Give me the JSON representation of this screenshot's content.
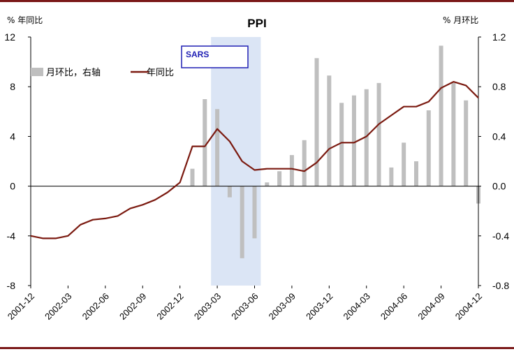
{
  "chart_data": {
    "type": "bar+line",
    "title": "PPI",
    "left_axis_unit": "% 年同比",
    "right_axis_unit": "% 月环比",
    "left_ylim": [
      -8,
      12
    ],
    "left_ticks": [
      -8,
      -4,
      0,
      4,
      8,
      12
    ],
    "left_tick_labels": [
      "-8",
      "-4",
      "0",
      "4",
      "8",
      "12"
    ],
    "right_ylim": [
      -0.8,
      1.2
    ],
    "right_ticks": [
      -0.8,
      -0.4,
      0.0,
      0.4,
      0.8,
      1.2
    ],
    "right_tick_labels": [
      "-0.8",
      "-0.4",
      "0.0",
      "0.4",
      "0.8",
      "1.2"
    ],
    "x_tick_labels": [
      "2001-12",
      "2002-03",
      "2002-06",
      "2002-09",
      "2002-12",
      "2003-03",
      "2003-06",
      "2003-09",
      "2003-12",
      "2004-03",
      "2004-06",
      "2004-09",
      "2004-12"
    ],
    "months": [
      "2001-12",
      "2002-01",
      "2002-02",
      "2002-03",
      "2002-04",
      "2002-05",
      "2002-06",
      "2002-07",
      "2002-08",
      "2002-09",
      "2002-10",
      "2002-11",
      "2002-12",
      "2003-01",
      "2003-02",
      "2003-03",
      "2003-04",
      "2003-05",
      "2003-06",
      "2003-07",
      "2003-08",
      "2003-09",
      "2003-10",
      "2003-11",
      "2003-12",
      "2004-01",
      "2004-02",
      "2004-03",
      "2004-04",
      "2004-05",
      "2004-06",
      "2004-07",
      "2004-08",
      "2004-09",
      "2004-10",
      "2004-11",
      "2004-12"
    ],
    "grid": false,
    "legend_position": "top-left",
    "highlight": {
      "label": "SARS",
      "start": "2003-03",
      "end": "2003-06",
      "color": "#dbe5f5"
    },
    "series": [
      {
        "name": "月环比，右轴",
        "type": "bar",
        "axis": "right",
        "color": "#bfbfbf",
        "values": [
          null,
          null,
          null,
          null,
          null,
          null,
          null,
          null,
          null,
          null,
          null,
          null,
          null,
          0.14,
          0.7,
          0.62,
          -0.09,
          -0.58,
          -0.42,
          0.03,
          0.12,
          0.25,
          0.37,
          1.03,
          0.89,
          0.67,
          0.73,
          0.78,
          0.83,
          0.15,
          0.35,
          0.2,
          0.61,
          1.13,
          0.83,
          0.69,
          -0.14
        ]
      },
      {
        "name": "年同比",
        "type": "line",
        "axis": "left",
        "color": "#7b1a10",
        "values": [
          -4.0,
          -4.2,
          -4.2,
          -4.0,
          -3.1,
          -2.7,
          -2.6,
          -2.4,
          -1.8,
          -1.5,
          -1.1,
          -0.5,
          0.3,
          3.2,
          3.2,
          4.6,
          3.6,
          2.0,
          1.3,
          1.4,
          1.4,
          1.4,
          1.2,
          1.9,
          3.0,
          3.5,
          3.5,
          4.0,
          5.0,
          5.7,
          6.4,
          6.4,
          6.8,
          7.9,
          8.4,
          8.1,
          7.1
        ]
      }
    ]
  }
}
